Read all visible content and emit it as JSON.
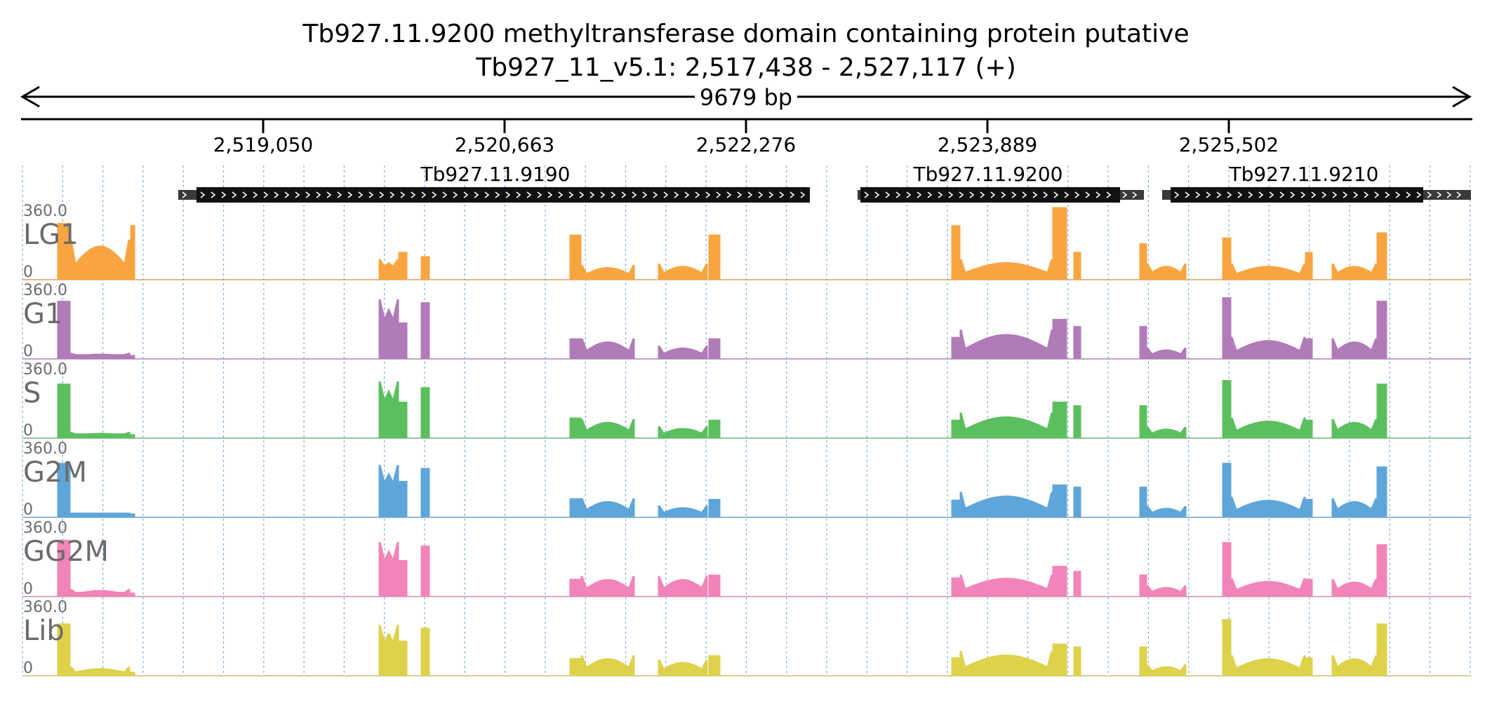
{
  "header": {
    "title": "Tb927.11.9200  methyltransferase domain containing protein  putative",
    "locus": "Tb927_11_v5.1: 2,517,438 - 2,527,117 (+)",
    "span_label": "9679 bp"
  },
  "ruler": {
    "ticks": [
      "2,519,050",
      "2,520,663",
      "2,522,276",
      "2,523,889",
      "2,525,502"
    ]
  },
  "genes": [
    {
      "name": "Tb927.11.9190"
    },
    {
      "name": "Tb927.11.9200"
    },
    {
      "name": "Tb927.11.9210"
    }
  ],
  "tracks": [
    {
      "name": "LG1",
      "max_label": "360.0",
      "min_label": "0",
      "color": "#f8a541"
    },
    {
      "name": "G1",
      "max_label": "360.0",
      "min_label": "0",
      "color": "#b07bb8"
    },
    {
      "name": "S",
      "max_label": "360.0",
      "min_label": "0",
      "color": "#5cbf5f"
    },
    {
      "name": "G2M",
      "max_label": "360.0",
      "min_label": "0",
      "color": "#5ea6d9"
    },
    {
      "name": "GG2M",
      "max_label": "360.0",
      "min_label": "0",
      "color": "#f184b8"
    },
    {
      "name": "Lib",
      "max_label": "360.0",
      "min_label": "0",
      "color": "#ddd24a"
    }
  ]
}
